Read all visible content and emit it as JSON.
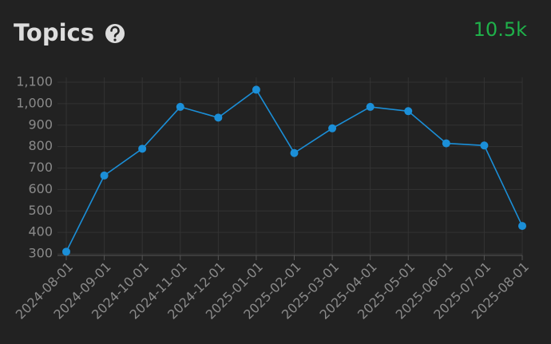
{
  "chart_data": {
    "type": "line",
    "title": "Topics",
    "total": "10.5k",
    "categories": [
      "2024-08-01",
      "2024-09-01",
      "2024-10-01",
      "2024-11-01",
      "2024-12-01",
      "2025-01-01",
      "2025-02-01",
      "2025-03-01",
      "2025-04-01",
      "2025-05-01",
      "2025-06-01",
      "2025-07-01",
      "2025-08-01"
    ],
    "values": [
      310,
      665,
      790,
      985,
      935,
      1065,
      770,
      885,
      985,
      965,
      815,
      805,
      430
    ],
    "color": "#1b8fd8",
    "ylim": [
      300,
      1100
    ],
    "yticks": [
      300,
      400,
      500,
      600,
      700,
      800,
      900,
      {
        "value": 1000,
        "label": "1,000"
      },
      {
        "value": 1100,
        "label": "1,100"
      }
    ],
    "grid": true
  }
}
